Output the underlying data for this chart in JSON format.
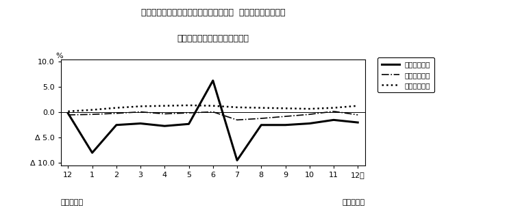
{
  "title_line1": "第４図　賃金、労働時間、常用雇用指数  対前年同月比の推移",
  "title_line2": "（規模５人以上　調査産業計）",
  "x_labels": [
    "12",
    "1",
    "2",
    "3",
    "4",
    "5",
    "6",
    "7",
    "8",
    "9",
    "10",
    "11",
    "12月"
  ],
  "x_bottom_left": "平成２３年",
  "x_bottom_right": "平成２４年",
  "ylim": [
    -10.5,
    10.5
  ],
  "ytick_vals": [
    10.0,
    5.0,
    0.0,
    -5.0,
    -10.0
  ],
  "ytick_labels": [
    "10.0",
    "5.0",
    "0.0",
    "Δ 5.0",
    "Δ 10.0"
  ],
  "ylabel": "%",
  "legend_labels": [
    "現金給与総額",
    "総実労働時間",
    "常用雇用指数"
  ],
  "series": {
    "genkinhuryo": {
      "label": "現金給与総額",
      "color": "#000000",
      "linestyle": "solid",
      "linewidth": 2.2,
      "values": [
        -0.2,
        -8.0,
        -2.5,
        -2.2,
        -2.7,
        -2.3,
        6.3,
        -9.5,
        -2.5,
        -2.5,
        -2.2,
        -1.5,
        -2.0
      ]
    },
    "jitsurodojikan": {
      "label": "総実労働時間",
      "color": "#000000",
      "linestyle": "dashdot",
      "linewidth": 1.2,
      "values": [
        -0.5,
        -0.4,
        -0.2,
        0.1,
        -0.3,
        -0.1,
        0.1,
        -1.5,
        -1.2,
        -0.8,
        -0.4,
        0.2,
        -0.5
      ]
    },
    "joyokoyo": {
      "label": "常用雇用指数",
      "color": "#000000",
      "linestyle": "dotted",
      "linewidth": 1.8,
      "values": [
        0.2,
        0.5,
        0.9,
        1.2,
        1.3,
        1.4,
        1.3,
        1.0,
        0.9,
        0.8,
        0.7,
        0.9,
        1.3
      ]
    }
  },
  "background_color": "#ffffff"
}
